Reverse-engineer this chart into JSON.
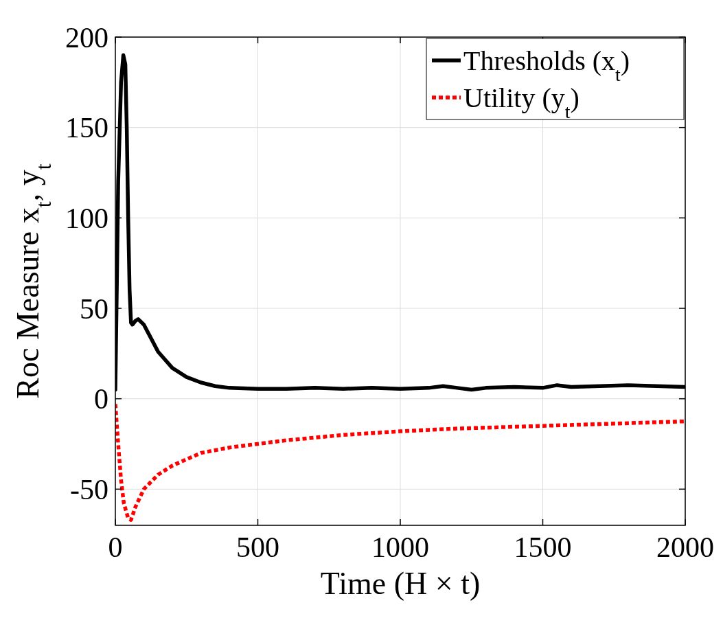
{
  "chart_data": {
    "type": "line",
    "xlabel": "Time (H × t)",
    "ylabel": "Roc Measure x$_{t}$, y$_{t}$",
    "xlim": [
      0,
      2000
    ],
    "ylim": [
      -70,
      200
    ],
    "xticks": [
      0,
      500,
      1000,
      1500,
      2000
    ],
    "yticks": [
      -50,
      0,
      50,
      100,
      150,
      200
    ],
    "grid": true,
    "legend": "top right",
    "marker": "none",
    "series": [
      {
        "name": "Thresholds (x$_{t}$)",
        "color": "#000000",
        "line_style": "solid",
        "x": [
          0,
          5,
          10,
          20,
          28,
          35,
          40,
          45,
          50,
          55,
          60,
          70,
          80,
          100,
          120,
          150,
          200,
          250,
          300,
          350,
          400,
          500,
          600,
          700,
          800,
          900,
          1000,
          1100,
          1150,
          1200,
          1250,
          1300,
          1400,
          1500,
          1550,
          1600,
          1700,
          1800,
          1900,
          2000
        ],
        "values": [
          5,
          60,
          120,
          175,
          190,
          185,
          150,
          100,
          60,
          42,
          41,
          43,
          44,
          41,
          35,
          26,
          17,
          12,
          9,
          7,
          6,
          5.5,
          5.5,
          6,
          5.5,
          6,
          5.5,
          6,
          7,
          6,
          5,
          6,
          6.5,
          6,
          7.5,
          6.5,
          7,
          7.5,
          7,
          6.5
        ]
      },
      {
        "name": "Utility (y$_{t}$)",
        "color": "#ff0000",
        "line_style": "dotted",
        "x": [
          0,
          10,
          20,
          30,
          45,
          55,
          70,
          100,
          150,
          200,
          300,
          400,
          500,
          600,
          800,
          1000,
          1200,
          1500,
          1800,
          2000
        ],
        "values": [
          -3,
          -25,
          -45,
          -58,
          -66,
          -67,
          -60,
          -50,
          -42,
          -37,
          -30,
          -27,
          -25,
          -23,
          -20,
          -18,
          -16.5,
          -15,
          -13.5,
          -12.5
        ]
      }
    ]
  }
}
